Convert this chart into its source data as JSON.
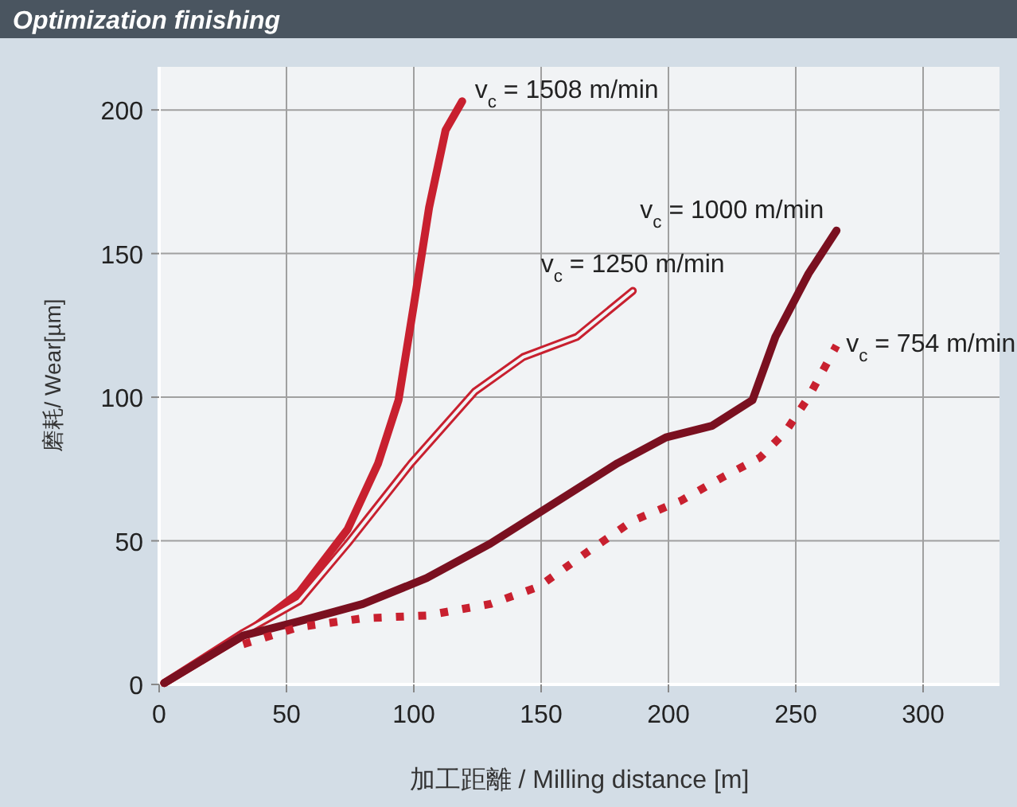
{
  "chart_data": {
    "type": "line",
    "title": "Optimization finishing",
    "xlabel": "加工距離 / Milling distance [m]",
    "ylabel": "磨耗/ Wear[µm]",
    "xlim": [
      0,
      330
    ],
    "ylim": [
      0,
      215
    ],
    "xticks": [
      0,
      50,
      100,
      150,
      200,
      250,
      300
    ],
    "yticks": [
      0,
      50,
      100,
      150,
      200
    ],
    "grid": true,
    "series": [
      {
        "name": "v$_{c}$ = 1508 m/min",
        "color": "#c8202f",
        "line_style": "solid",
        "x": [
          2,
          33,
          55,
          74,
          86,
          94,
          100,
          106,
          112.5,
          119
        ],
        "values": [
          0.5,
          17,
          32,
          54,
          77,
          99,
          132,
          166,
          193,
          203
        ]
      },
      {
        "name": "v$_{c}$ = 1250 m/min",
        "color": "#c8202f",
        "line_style": "solid",
        "x": [
          2,
          33,
          55,
          74,
          99,
          124,
          143,
          152,
          164,
          186
        ],
        "values": [
          0.5,
          18,
          29,
          49,
          77,
          102,
          114,
          117,
          121,
          137
        ]
      },
      {
        "name": "v$_{c}$ = 1000 m/min",
        "color": "#7a1020",
        "line_style": "solid",
        "x": [
          2,
          33,
          55,
          80,
          105,
          130,
          155,
          180,
          199,
          217,
          233,
          242,
          255,
          266
        ],
        "values": [
          0.5,
          17,
          22,
          28,
          37,
          49,
          63,
          77,
          86,
          90,
          99,
          121,
          143,
          158
        ]
      },
      {
        "name": "v$_{c}$ = 754 m/min",
        "color": "#c8202f",
        "line_style": "dotted",
        "x": [
          33,
          55,
          80,
          105,
          130,
          149,
          168,
          186,
          205,
          221,
          236,
          246,
          255,
          266
        ],
        "values": [
          14,
          20,
          23,
          24,
          28,
          34,
          46,
          57,
          64,
          72,
          79,
          88,
          100,
          118
        ]
      }
    ]
  }
}
